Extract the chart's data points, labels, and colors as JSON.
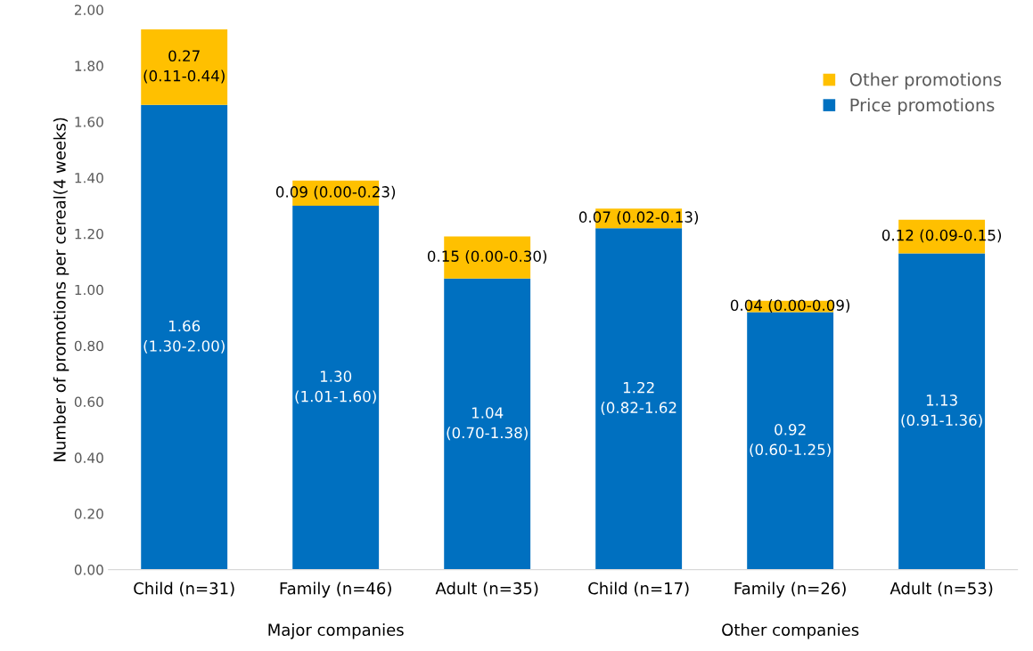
{
  "chart_data": {
    "type": "bar",
    "stacked": true,
    "ylabel": "Number of promotions per cereal(4 weeks)",
    "categories": [
      "Child (n=31)",
      "Family (n=46)",
      "Adult (n=35)",
      "Child (n=17)",
      "Family (n=26)",
      "Adult (n=53)"
    ],
    "series": [
      {
        "name": "Price promotions",
        "color": "#0070c0",
        "values": [
          1.66,
          1.3,
          1.04,
          1.22,
          0.92,
          1.13
        ],
        "value_labels": [
          "1.66\n(1.30-2.00)",
          "1.30\n(1.01-1.60)",
          "1.04\n(0.70-1.38)",
          "1.22\n(0.82-1.62",
          "0.92\n(0.60-1.25)",
          "1.13\n(0.91-1.36)"
        ]
      },
      {
        "name": "Other promotions",
        "color": "#ffc000",
        "values": [
          0.27,
          0.09,
          0.15,
          0.07,
          0.04,
          0.12
        ],
        "value_labels": [
          "0.27\n(0.11-0.44)",
          "0.09 (0.00-0.23)",
          "0.15 (0.00-0.30)",
          "0.07 (0.02-0.13)",
          "0.04 (0.00-0.09)",
          "0.12 (0.09-0.15)"
        ]
      }
    ],
    "ylim": [
      0,
      2
    ],
    "yticks": [
      {
        "value": 0,
        "label": "0.00"
      },
      {
        "value": 0.2,
        "label": "0.20"
      },
      {
        "value": 0.4,
        "label": "0.40"
      },
      {
        "value": 0.6,
        "label": "0.60"
      },
      {
        "value": 0.8,
        "label": "0.80"
      },
      {
        "value": 1.0,
        "label": "1.00"
      },
      {
        "value": 1.2,
        "label": "1.20"
      },
      {
        "value": 1.4,
        "label": "1.40"
      },
      {
        "value": 1.6,
        "label": "1.60"
      },
      {
        "value": 1.8,
        "label": "1.80"
      },
      {
        "value": 2.0,
        "label": "2.00"
      }
    ],
    "annotations": [
      "Major companies",
      "Other companies"
    ],
    "grid": false,
    "legend": "right"
  }
}
